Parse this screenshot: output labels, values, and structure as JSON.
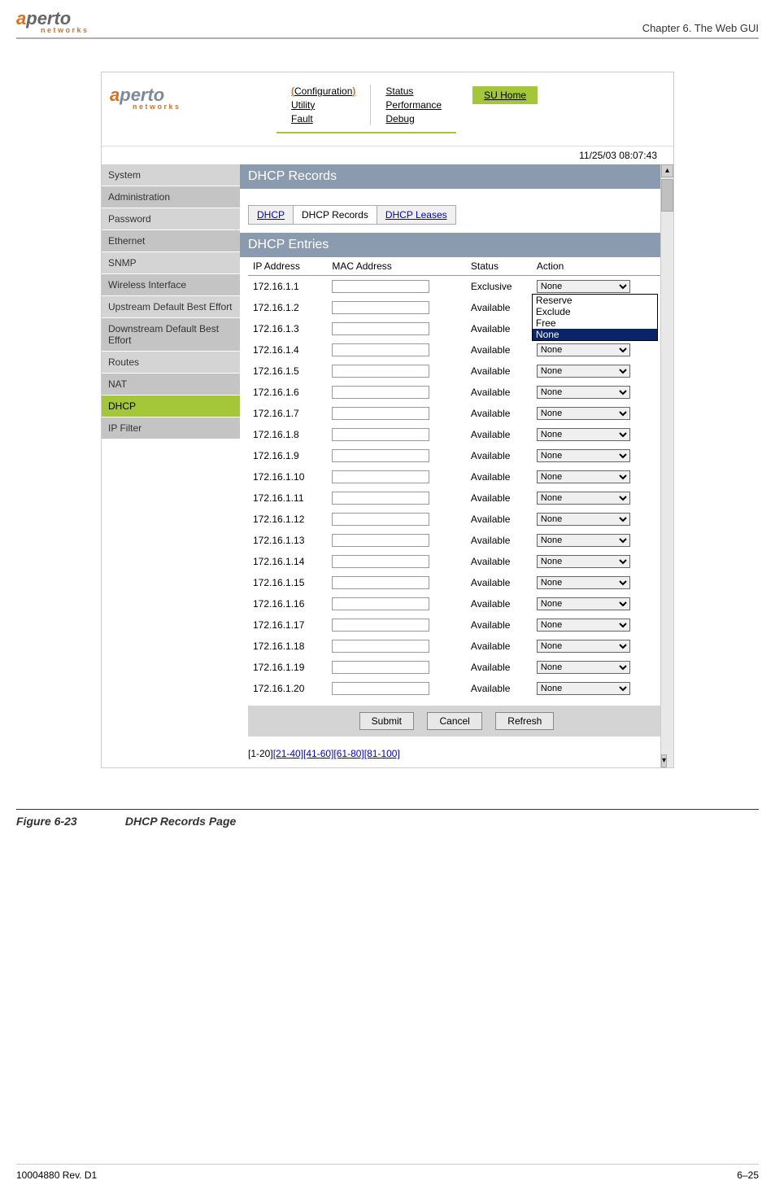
{
  "doc": {
    "chapter": "Chapter 6.  The Web GUI",
    "footer_left": "10004880 Rev. D1",
    "footer_right": "6–25",
    "figure_num": "Figure 6-23",
    "figure_title": "DHCP Records Page"
  },
  "header": {
    "logo_a": "a",
    "logo_rest": "perto",
    "logo_sub": "n e t w o r k s",
    "nav": {
      "col1": [
        "Configuration",
        "Utility",
        "Fault"
      ],
      "col2": [
        "Status",
        "Performance",
        "Debug"
      ]
    },
    "su_home": "SU Home",
    "datetime": "11/25/03    08:07:43"
  },
  "sidebar": {
    "items": [
      {
        "label": "System",
        "alt": false
      },
      {
        "label": "Administration",
        "alt": true
      },
      {
        "label": "Password",
        "alt": false
      },
      {
        "label": "Ethernet",
        "alt": true
      },
      {
        "label": "SNMP",
        "alt": false
      },
      {
        "label": "Wireless Interface",
        "alt": true
      },
      {
        "label": "Upstream Default Best Effort",
        "alt": false
      },
      {
        "label": "Downstream Default Best Effort",
        "alt": true
      },
      {
        "label": "Routes",
        "alt": false
      },
      {
        "label": "NAT",
        "alt": true
      },
      {
        "label": "DHCP",
        "alt": false,
        "active": true
      },
      {
        "label": "IP Filter",
        "alt": true
      }
    ]
  },
  "content": {
    "title_bar": "DHCP Records",
    "tabs": [
      {
        "label": "DHCP",
        "link": true
      },
      {
        "label": "DHCP Records",
        "active": true
      },
      {
        "label": "DHCP Leases",
        "link": true
      }
    ],
    "entries_bar": "DHCP Entries",
    "columns": [
      "IP Address",
      "MAC Address",
      "Status",
      "Action"
    ],
    "dropdown_options": [
      "Reserve",
      "Exclude",
      "Free",
      "None"
    ],
    "dropdown_selected": "None",
    "rows": [
      {
        "ip": "172.16.1.1",
        "mac": "",
        "status": "Exclusive",
        "action": "None",
        "open": true
      },
      {
        "ip": "172.16.1.2",
        "mac": "",
        "status": "Available",
        "action": ""
      },
      {
        "ip": "172.16.1.3",
        "mac": "",
        "status": "Available",
        "action": ""
      },
      {
        "ip": "172.16.1.4",
        "mac": "",
        "status": "Available",
        "action": "None"
      },
      {
        "ip": "172.16.1.5",
        "mac": "",
        "status": "Available",
        "action": "None"
      },
      {
        "ip": "172.16.1.6",
        "mac": "",
        "status": "Available",
        "action": "None"
      },
      {
        "ip": "172.16.1.7",
        "mac": "",
        "status": "Available",
        "action": "None"
      },
      {
        "ip": "172.16.1.8",
        "mac": "",
        "status": "Available",
        "action": "None"
      },
      {
        "ip": "172.16.1.9",
        "mac": "",
        "status": "Available",
        "action": "None"
      },
      {
        "ip": "172.16.1.10",
        "mac": "",
        "status": "Available",
        "action": "None"
      },
      {
        "ip": "172.16.1.11",
        "mac": "",
        "status": "Available",
        "action": "None"
      },
      {
        "ip": "172.16.1.12",
        "mac": "",
        "status": "Available",
        "action": "None"
      },
      {
        "ip": "172.16.1.13",
        "mac": "",
        "status": "Available",
        "action": "None"
      },
      {
        "ip": "172.16.1.14",
        "mac": "",
        "status": "Available",
        "action": "None"
      },
      {
        "ip": "172.16.1.15",
        "mac": "",
        "status": "Available",
        "action": "None"
      },
      {
        "ip": "172.16.1.16",
        "mac": "",
        "status": "Available",
        "action": "None"
      },
      {
        "ip": "172.16.1.17",
        "mac": "",
        "status": "Available",
        "action": "None"
      },
      {
        "ip": "172.16.1.18",
        "mac": "",
        "status": "Available",
        "action": "None"
      },
      {
        "ip": "172.16.1.19",
        "mac": "",
        "status": "Available",
        "action": "None"
      },
      {
        "ip": "172.16.1.20",
        "mac": "",
        "status": "Available",
        "action": "None"
      }
    ],
    "buttons": [
      "Submit",
      "Cancel",
      "Refresh"
    ],
    "pagination": {
      "current": "[1-20]",
      "links": [
        "[21-40]",
        "[41-60]",
        "[61-80]",
        "[81-100]"
      ]
    }
  },
  "colors": {
    "accent": "#a4c639",
    "header_bar": "#8a9bb0",
    "sidebar_bg": "#d4d4d4",
    "sidebar_alt": "#c4c4c4"
  }
}
